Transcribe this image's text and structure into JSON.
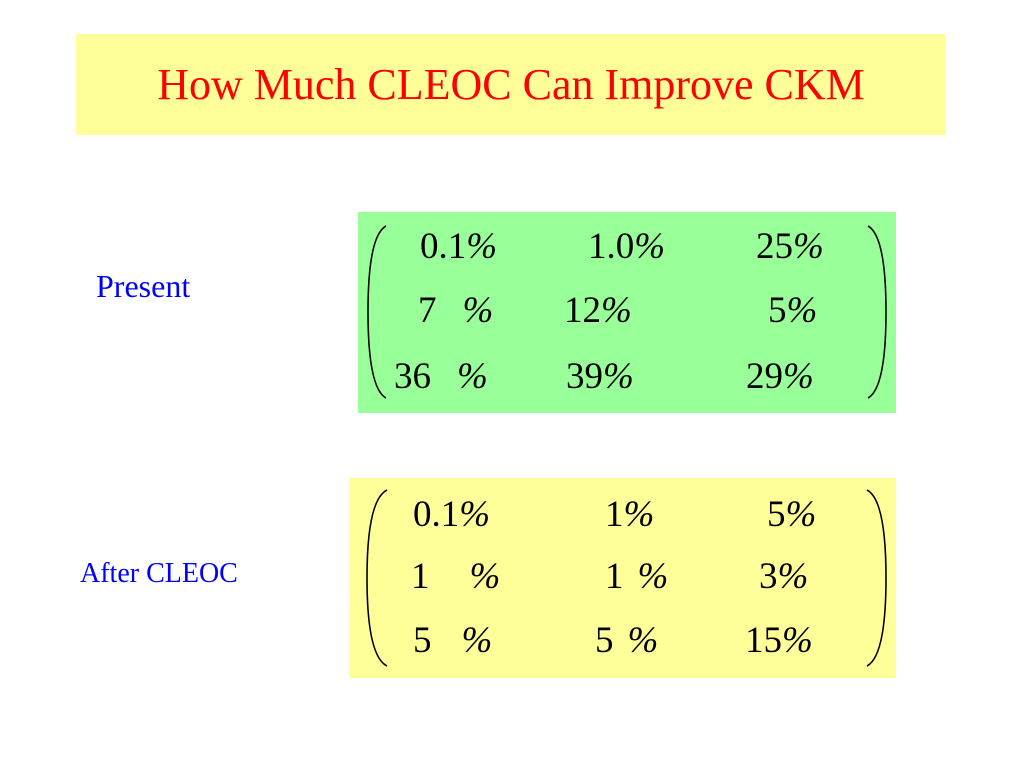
{
  "title": "How Much CLEOC Can Improve CKM",
  "present": {
    "label": "Present",
    "rows": [
      [
        {
          "num": "0.1",
          "pct": "%"
        },
        {
          "num": "1.0",
          "pct": "%"
        },
        {
          "num": "25",
          "pct": "%"
        }
      ],
      [
        {
          "num": "7",
          "pct": "%"
        },
        {
          "num": "12",
          "pct": "%"
        },
        {
          "num": "5",
          "pct": "%"
        }
      ],
      [
        {
          "num": "36",
          "pct": "%"
        },
        {
          "num": "39",
          "pct": "%"
        },
        {
          "num": "29",
          "pct": "%"
        }
      ]
    ],
    "color": "#99ff99"
  },
  "after": {
    "label": "After CLEOC",
    "rows": [
      [
        {
          "num": "0.1",
          "pct": "%"
        },
        {
          "num": "1",
          "pct": "%"
        },
        {
          "num": "5",
          "pct": "%"
        }
      ],
      [
        {
          "num": "1",
          "pct": "%"
        },
        {
          "num": "1",
          "pct": "%"
        },
        {
          "num": "3",
          "pct": "%"
        }
      ],
      [
        {
          "num": "5",
          "pct": "%"
        },
        {
          "num": "5",
          "pct": "%"
        },
        {
          "num": "15",
          "pct": "%"
        }
      ]
    ],
    "color": "#ffff99"
  },
  "colors": {
    "title": "#ff0000",
    "title_background": "#ffff99",
    "labels": "#0000ff"
  }
}
